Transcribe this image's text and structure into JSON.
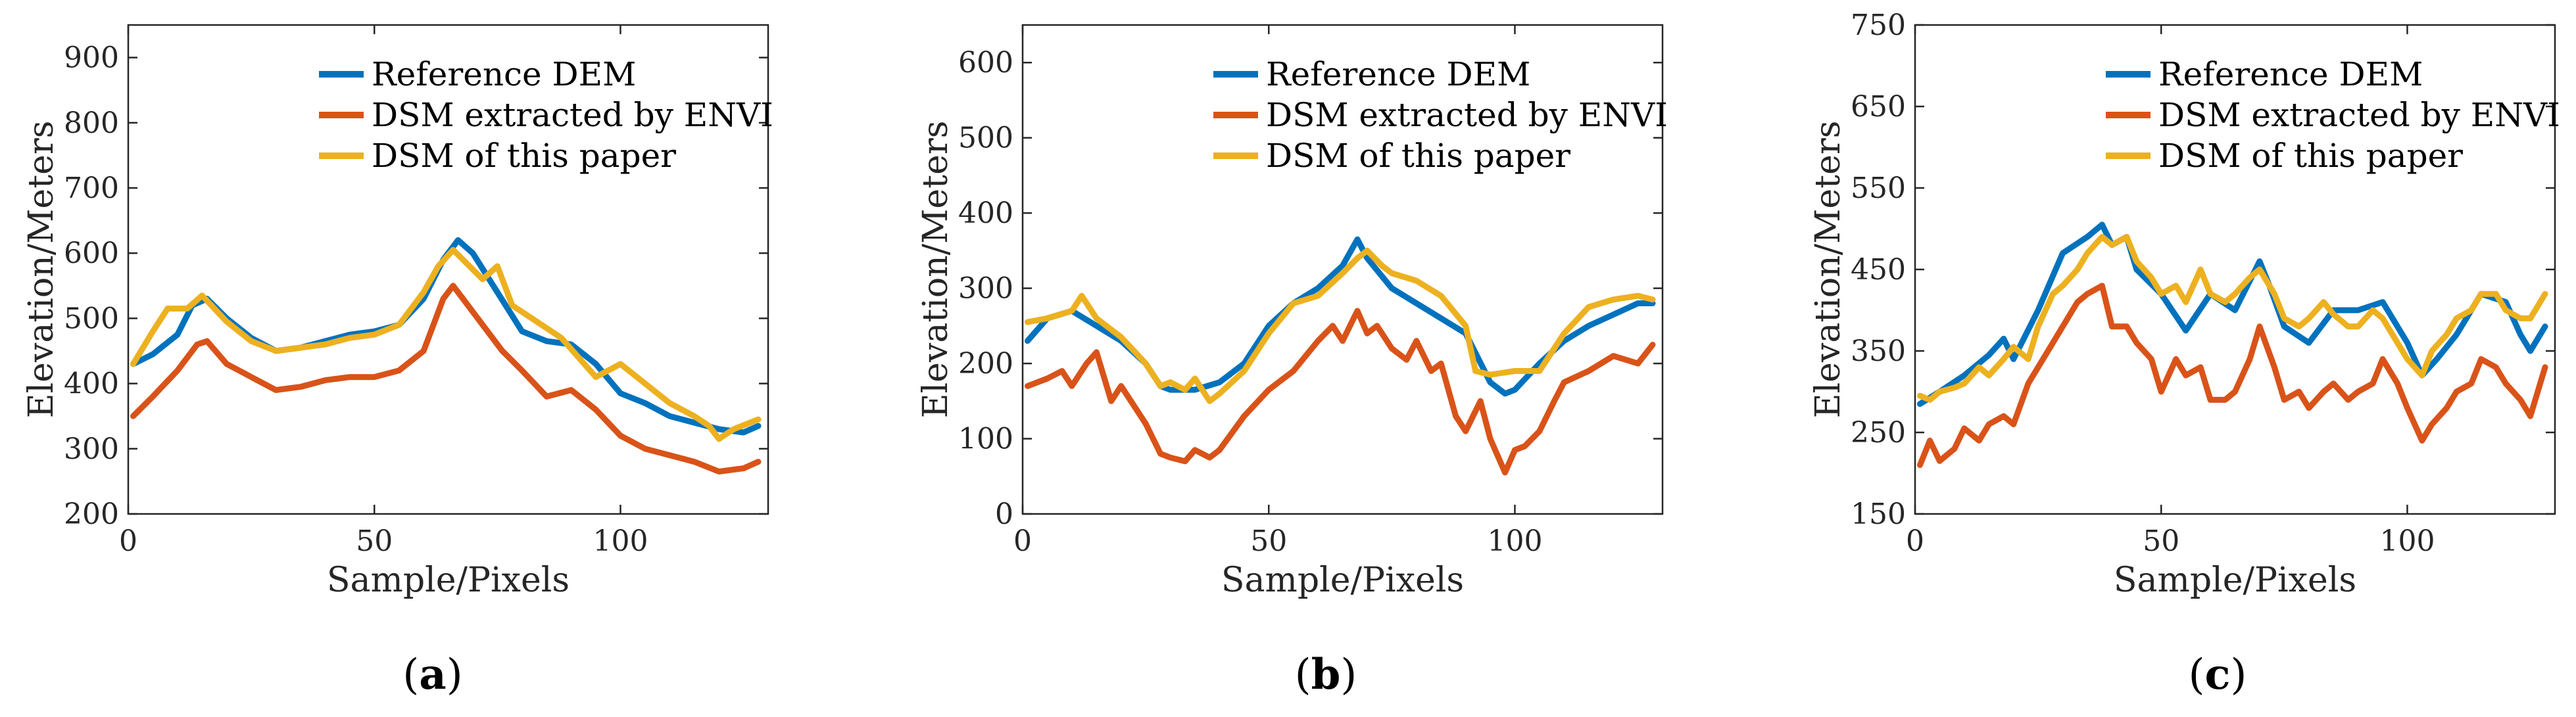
{
  "chart_data": [
    {
      "type": "line",
      "panel_label": "a",
      "xlabel": "Sample/Pixels",
      "ylabel": "Elevation/Meters",
      "xlim": [
        0,
        130
      ],
      "ylim": [
        200,
        950
      ],
      "xticks": [
        0,
        50,
        100
      ],
      "yticks": [
        200,
        300,
        400,
        500,
        600,
        700,
        800,
        900
      ],
      "legend_position": "top-right",
      "series": [
        {
          "name": "Reference DEM",
          "color": "#0072BD",
          "x": [
            1,
            5,
            10,
            13,
            16,
            20,
            25,
            30,
            35,
            40,
            45,
            50,
            55,
            60,
            64,
            67,
            70,
            75,
            80,
            85,
            90,
            95,
            100,
            105,
            110,
            115,
            120,
            125,
            128
          ],
          "y": [
            430,
            445,
            475,
            520,
            530,
            500,
            470,
            450,
            455,
            465,
            475,
            480,
            490,
            530,
            590,
            620,
            600,
            540,
            480,
            465,
            460,
            430,
            385,
            370,
            350,
            340,
            330,
            325,
            335
          ]
        },
        {
          "name": "DSM extracted by ENVI",
          "color": "#D95319",
          "x": [
            1,
            5,
            10,
            14,
            16,
            20,
            25,
            30,
            35,
            40,
            45,
            50,
            55,
            60,
            64,
            66,
            68,
            72,
            76,
            80,
            85,
            90,
            95,
            100,
            105,
            110,
            115,
            120,
            125,
            128
          ],
          "y": [
            350,
            380,
            420,
            460,
            465,
            430,
            410,
            390,
            395,
            405,
            410,
            410,
            420,
            450,
            530,
            550,
            530,
            490,
            450,
            420,
            380,
            390,
            360,
            320,
            300,
            290,
            280,
            265,
            270,
            280
          ]
        },
        {
          "name": "DSM of this paper",
          "color": "#EDB120",
          "x": [
            1,
            5,
            8,
            12,
            15,
            20,
            25,
            30,
            35,
            40,
            45,
            50,
            55,
            60,
            63,
            66,
            68,
            72,
            75,
            78,
            82,
            88,
            95,
            100,
            105,
            110,
            115,
            118,
            120,
            123,
            128
          ],
          "y": [
            430,
            480,
            515,
            515,
            535,
            495,
            465,
            450,
            455,
            460,
            470,
            475,
            490,
            540,
            580,
            605,
            590,
            560,
            580,
            520,
            500,
            470,
            410,
            430,
            400,
            370,
            350,
            335,
            315,
            330,
            345
          ]
        }
      ]
    },
    {
      "type": "line",
      "panel_label": "b",
      "xlabel": "Sample/Pixels",
      "ylabel": "Elevation/Meters",
      "xlim": [
        0,
        130
      ],
      "ylim": [
        0,
        650
      ],
      "xticks": [
        0,
        50,
        100
      ],
      "yticks": [
        0,
        100,
        200,
        300,
        400,
        500,
        600
      ],
      "legend_position": "top-right",
      "series": [
        {
          "name": "Reference DEM",
          "color": "#0072BD",
          "x": [
            1,
            5,
            10,
            15,
            20,
            25,
            28,
            30,
            35,
            40,
            45,
            50,
            55,
            60,
            65,
            68,
            70,
            75,
            80,
            85,
            90,
            95,
            98,
            100,
            105,
            110,
            115,
            120,
            125,
            128
          ],
          "y": [
            230,
            260,
            270,
            250,
            230,
            200,
            170,
            165,
            165,
            175,
            200,
            250,
            280,
            300,
            330,
            365,
            340,
            300,
            280,
            260,
            240,
            175,
            160,
            165,
            200,
            230,
            250,
            265,
            280,
            280
          ]
        },
        {
          "name": "DSM extracted by ENVI",
          "color": "#D95319",
          "x": [
            1,
            5,
            8,
            10,
            13,
            15,
            18,
            20,
            25,
            28,
            30,
            33,
            35,
            38,
            40,
            45,
            50,
            55,
            60,
            63,
            65,
            68,
            70,
            72,
            75,
            78,
            80,
            83,
            85,
            88,
            90,
            93,
            95,
            97,
            98,
            100,
            102,
            105,
            108,
            110,
            115,
            120,
            125,
            128
          ],
          "y": [
            170,
            180,
            190,
            170,
            200,
            215,
            150,
            170,
            120,
            80,
            75,
            70,
            85,
            75,
            85,
            130,
            165,
            190,
            230,
            250,
            230,
            270,
            240,
            250,
            220,
            205,
            230,
            190,
            200,
            130,
            110,
            150,
            100,
            70,
            55,
            85,
            90,
            110,
            150,
            175,
            190,
            210,
            200,
            225
          ]
        },
        {
          "name": "DSM of this paper",
          "color": "#EDB120",
          "x": [
            1,
            5,
            10,
            12,
            15,
            20,
            25,
            28,
            30,
            33,
            35,
            38,
            40,
            45,
            50,
            55,
            60,
            65,
            68,
            70,
            73,
            75,
            80,
            85,
            90,
            92,
            95,
            100,
            105,
            110,
            115,
            120,
            125,
            128
          ],
          "y": [
            255,
            260,
            270,
            290,
            260,
            235,
            200,
            170,
            175,
            165,
            180,
            150,
            160,
            190,
            240,
            280,
            290,
            320,
            340,
            350,
            330,
            320,
            310,
            290,
            250,
            190,
            185,
            190,
            190,
            240,
            275,
            285,
            290,
            285
          ]
        }
      ]
    },
    {
      "type": "line",
      "panel_label": "c",
      "xlabel": "Sample/Pixels",
      "ylabel": "Elevation/Meters",
      "xlim": [
        0,
        130
      ],
      "ylim": [
        150,
        750
      ],
      "xticks": [
        0,
        50,
        100
      ],
      "yticks": [
        150,
        250,
        350,
        450,
        550,
        650,
        750
      ],
      "legend_position": "top-right",
      "series": [
        {
          "name": "Reference DEM",
          "color": "#0072BD",
          "x": [
            1,
            5,
            10,
            15,
            18,
            20,
            25,
            30,
            35,
            38,
            40,
            43,
            45,
            50,
            55,
            60,
            65,
            70,
            72,
            75,
            80,
            85,
            90,
            95,
            100,
            103,
            106,
            110,
            115,
            120,
            123,
            125,
            128
          ],
          "y": [
            285,
            300,
            320,
            345,
            365,
            340,
            400,
            470,
            490,
            505,
            480,
            490,
            450,
            420,
            375,
            420,
            400,
            460,
            430,
            380,
            360,
            400,
            400,
            410,
            360,
            320,
            340,
            370,
            420,
            410,
            370,
            350,
            380
          ]
        },
        {
          "name": "DSM extracted by ENVI",
          "color": "#D95319",
          "x": [
            1,
            3,
            5,
            8,
            10,
            13,
            15,
            18,
            20,
            23,
            25,
            28,
            30,
            33,
            35,
            38,
            40,
            43,
            45,
            48,
            50,
            53,
            55,
            58,
            60,
            63,
            65,
            68,
            70,
            73,
            75,
            78,
            80,
            83,
            85,
            88,
            90,
            93,
            95,
            98,
            100,
            103,
            105,
            108,
            110,
            113,
            115,
            118,
            120,
            123,
            125,
            128
          ],
          "y": [
            210,
            240,
            215,
            230,
            255,
            240,
            260,
            270,
            260,
            310,
            330,
            360,
            380,
            410,
            420,
            430,
            380,
            380,
            360,
            340,
            300,
            340,
            320,
            330,
            290,
            290,
            300,
            340,
            380,
            330,
            290,
            300,
            280,
            300,
            310,
            290,
            300,
            310,
            340,
            310,
            280,
            240,
            260,
            280,
            300,
            310,
            340,
            330,
            310,
            290,
            270,
            330
          ]
        },
        {
          "name": "DSM of this paper",
          "color": "#EDB120",
          "x": [
            1,
            3,
            5,
            8,
            10,
            13,
            15,
            18,
            20,
            23,
            25,
            28,
            30,
            33,
            35,
            38,
            40,
            43,
            45,
            48,
            50,
            53,
            55,
            58,
            60,
            63,
            65,
            68,
            70,
            73,
            75,
            78,
            80,
            83,
            85,
            88,
            90,
            93,
            95,
            98,
            100,
            103,
            105,
            108,
            110,
            113,
            115,
            118,
            120,
            123,
            125,
            128
          ],
          "y": [
            295,
            290,
            300,
            305,
            310,
            330,
            320,
            340,
            355,
            340,
            380,
            420,
            430,
            450,
            470,
            490,
            480,
            490,
            460,
            440,
            420,
            430,
            410,
            450,
            420,
            410,
            420,
            440,
            450,
            420,
            390,
            380,
            390,
            410,
            395,
            380,
            380,
            400,
            390,
            360,
            340,
            320,
            350,
            370,
            390,
            400,
            420,
            420,
            400,
            390,
            390,
            420
          ]
        }
      ]
    }
  ]
}
